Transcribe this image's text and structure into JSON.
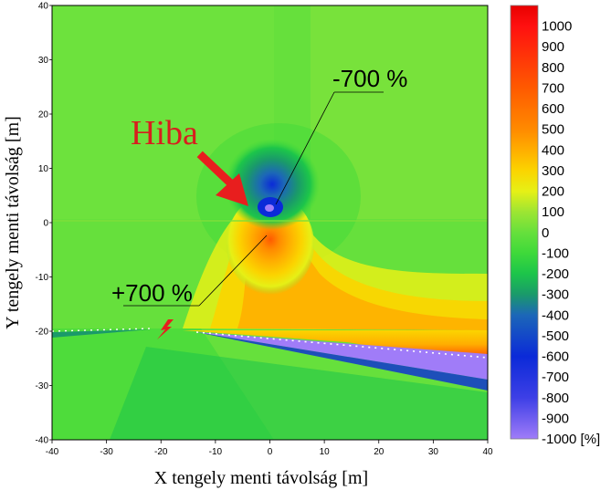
{
  "chart_data": {
    "type": "heatmap",
    "xlabel": "X tengely menti távolság [m]",
    "ylabel": "Y tengely menti távolság [m]",
    "xlim": [
      -40,
      40
    ],
    "ylim": [
      -40,
      40
    ],
    "x_ticks": [
      "-40",
      "-30",
      "-20",
      "-10",
      "0",
      "10",
      "20",
      "30",
      "40"
    ],
    "y_ticks": [
      "40",
      "30",
      "20",
      "10",
      "0",
      "-10",
      "-20",
      "-30",
      "-40"
    ],
    "colorbar": {
      "min": -1000,
      "max": 1100,
      "labels": [
        "1000",
        "900",
        "800",
        "700",
        "600",
        "500",
        "400",
        "300",
        "200",
        "100",
        "0",
        "-100",
        "-200",
        "-300",
        "-400",
        "-500",
        "-600",
        "-700",
        "-800",
        "-900",
        "-1000 [%]"
      ],
      "stops": [
        {
          "value": -1000,
          "color": "#a07cf8"
        },
        {
          "value": -800,
          "color": "#3d3fe6"
        },
        {
          "value": -600,
          "color": "#0b2ad8"
        },
        {
          "value": -400,
          "color": "#1c67b8"
        },
        {
          "value": -300,
          "color": "#1a9a6a"
        },
        {
          "value": -200,
          "color": "#1cc54a"
        },
        {
          "value": -100,
          "color": "#3ed93a"
        },
        {
          "value": 0,
          "color": "#66e03c"
        },
        {
          "value": 100,
          "color": "#9de533"
        },
        {
          "value": 200,
          "color": "#e6f016"
        },
        {
          "value": 300,
          "color": "#fbd400"
        },
        {
          "value": 400,
          "color": "#ffae00"
        },
        {
          "value": 500,
          "color": "#ff8a00"
        },
        {
          "value": 700,
          "color": "#ff5a00"
        },
        {
          "value": 1000,
          "color": "#ff1010"
        },
        {
          "value": 1100,
          "color": "#e80000"
        }
      ]
    },
    "annotations": {
      "negative_peak": "-700 %",
      "positive_peak": "+700 %",
      "fault": "Hiba"
    }
  },
  "colors": {
    "background_field": "#66e03c",
    "arrow": "#e81e1e",
    "fault_mark": "#e81e1e"
  }
}
